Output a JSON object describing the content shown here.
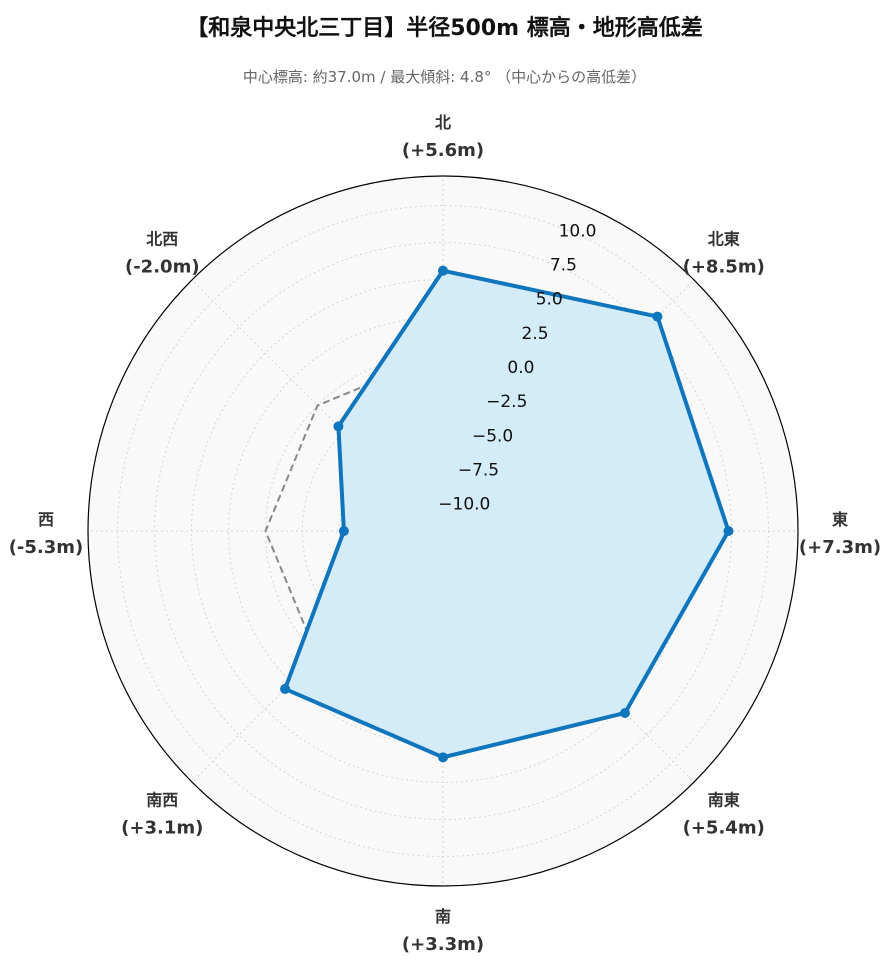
{
  "chart_data": {
    "type": "radar",
    "title": "【和泉中央北三丁目】半径500m 標高・地形高低差",
    "subtitle": "中心標高: 約37.0m / 最大傾斜: 4.8° （中心からの高低差）",
    "directions": [
      "北",
      "北東",
      "東",
      "南東",
      "南",
      "南西",
      "西",
      "北西"
    ],
    "direction_labels": [
      "(+5.6m)",
      "(+8.5m)",
      "(+7.3m)",
      "(+5.4m)",
      "(+3.3m)",
      "(+3.1m)",
      "(-5.3m)",
      "(-2.0m)"
    ],
    "values": [
      5.6,
      8.5,
      7.3,
      5.4,
      3.3,
      3.1,
      -5.3,
      -2.0
    ],
    "reference_values": [
      0,
      0,
      0,
      0,
      0,
      0,
      0,
      0
    ],
    "r_ticks": [
      "10.0",
      "7.5",
      "5.0",
      "2.5",
      "0.0",
      "−2.5",
      "−5.0",
      "−7.5",
      "−10.0"
    ],
    "r_tick_values": [
      10,
      7.5,
      5,
      2.5,
      0,
      -2.5,
      -5,
      -7.5,
      -10
    ],
    "rlim": [
      -12,
      12
    ],
    "grid": true,
    "colors": {
      "series_line": "#0f75bc",
      "series_fill": "#d3ecf8",
      "reference_line": "#888888",
      "background": "#f9f9f9",
      "grid": "#d5d5d5"
    }
  }
}
